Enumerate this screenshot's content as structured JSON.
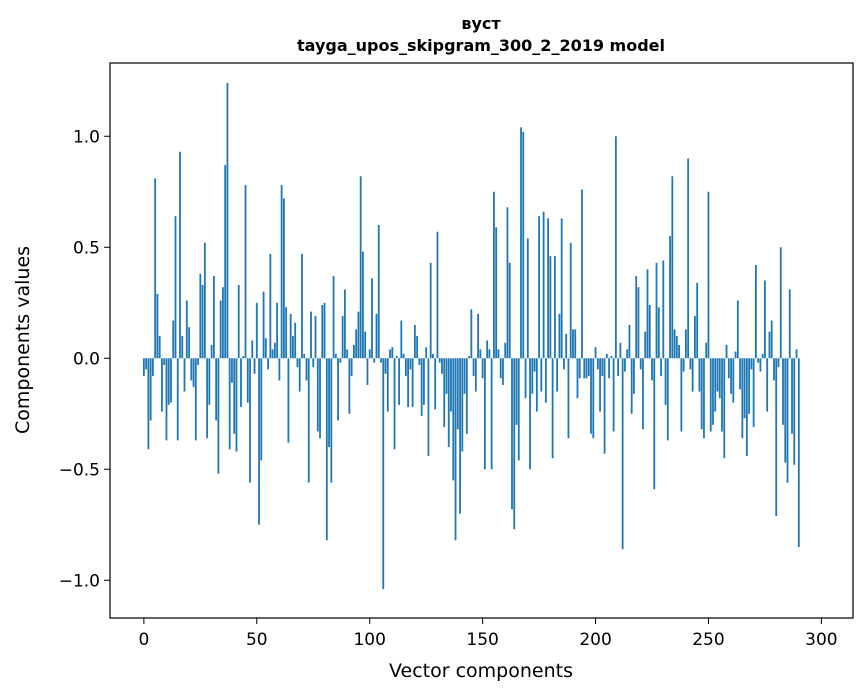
{
  "chart_data": {
    "type": "bar",
    "title": "вуст",
    "subtitle": "tayga_upos_skipgram_300_2_2019 model",
    "xlabel": "Vector components",
    "ylabel": "Components values",
    "xlim": [
      -15,
      314
    ],
    "ylim": [
      -1.17,
      1.33
    ],
    "xticks": [
      0,
      50,
      100,
      150,
      200,
      250,
      300
    ],
    "xtick_labels": [
      "0",
      "50",
      "100",
      "150",
      "200",
      "250",
      "300"
    ],
    "yticks": [
      -1.0,
      -0.5,
      0.0,
      0.5,
      1.0
    ],
    "ytick_labels": [
      "−1.0",
      "−0.5",
      "0.0",
      "0.5",
      "1.0"
    ],
    "color": "#1f77b4",
    "bar_width": 0.8,
    "values": [
      -0.08,
      -0.05,
      -0.41,
      -0.28,
      -0.08,
      0.81,
      0.29,
      0.1,
      -0.24,
      -0.03,
      -0.37,
      -0.21,
      -0.2,
      0.17,
      0.64,
      -0.37,
      0.93,
      0.1,
      -0.15,
      0.26,
      0.14,
      -0.1,
      -0.13,
      -0.37,
      -0.03,
      0.38,
      0.33,
      0.52,
      -0.36,
      -0.21,
      0.06,
      0.37,
      -0.28,
      -0.52,
      0.26,
      0.32,
      0.87,
      1.24,
      -0.41,
      -0.11,
      -0.34,
      -0.42,
      0.33,
      -0.22,
      0.01,
      0.78,
      -0.2,
      -0.56,
      0.08,
      -0.07,
      0.25,
      -0.75,
      -0.46,
      0.3,
      0.09,
      -0.05,
      0.47,
      0.04,
      0.07,
      0.25,
      -0.1,
      0.78,
      0.72,
      0.23,
      -0.38,
      0.2,
      0.1,
      0.16,
      -0.04,
      -0.15,
      0.47,
      0.02,
      -0.1,
      -0.56,
      0.21,
      -0.04,
      0.19,
      -0.33,
      -0.36,
      0.24,
      0.25,
      -0.82,
      -0.4,
      -0.56,
      0.37,
      0.02,
      -0.28,
      -0.02,
      0.19,
      0.31,
      0.04,
      -0.25,
      -0.08,
      0.06,
      0.13,
      0.21,
      0.82,
      0.48,
      0.12,
      -0.12,
      0.04,
      0.36,
      -0.02,
      0.2,
      0.6,
      -0.02,
      -1.04,
      -0.07,
      -0.24,
      0.04,
      0.05,
      -0.41,
      0.01,
      -0.21,
      0.17,
      0.02,
      -0.08,
      -0.22,
      -0.05,
      -0.22,
      0.15,
      0.1,
      -0.03,
      -0.26,
      -0.21,
      0.05,
      -0.44,
      0.43,
      0.02,
      -0.23,
      0.57,
      -0.02,
      -0.07,
      -0.31,
      -0.16,
      -0.4,
      -0.24,
      -0.55,
      -0.82,
      -0.32,
      -0.7,
      -0.42,
      -0.16,
      -0.34,
      0.01,
      0.22,
      -0.08,
      -0.15,
      0.2,
      0.04,
      -0.09,
      -0.5,
      0.08,
      0.04,
      -0.5,
      0.75,
      0.59,
      0.04,
      -0.09,
      -0.12,
      0.07,
      0.68,
      0.43,
      -0.68,
      -0.77,
      -0.3,
      -0.46,
      1.04,
      1.02,
      -0.18,
      0.54,
      -0.5,
      -0.16,
      -0.06,
      -0.24,
      0.64,
      -0.15,
      0.66,
      -0.2,
      0.63,
      0.46,
      -0.45,
      0.46,
      -0.15,
      0.2,
      0.63,
      -0.05,
      0.11,
      -0.36,
      0.52,
      0.13,
      0.13,
      -0.18,
      -0.09,
      0.76,
      -0.09,
      -0.09,
      -0.08,
      -0.34,
      -0.36,
      0.05,
      -0.05,
      -0.24,
      -0.08,
      -0.43,
      0.02,
      -0.09,
      0.01,
      -0.33,
      1.0,
      -0.08,
      0.07,
      -0.86,
      -0.06,
      0.04,
      0.15,
      -0.25,
      -0.16,
      0.37,
      0.32,
      -0.05,
      -0.32,
      0.12,
      0.4,
      0.24,
      -0.1,
      -0.59,
      0.43,
      0.23,
      -0.08,
      0.44,
      -0.21,
      -0.37,
      0.55,
      0.82,
      0.13,
      0.1,
      0.06,
      -0.33,
      -0.06,
      0.13,
      0.9,
      -0.05,
      -0.15,
      0.19,
      0.34,
      -0.15,
      -0.32,
      -0.36,
      0.07,
      0.75,
      -0.33,
      -0.3,
      -0.24,
      -0.15,
      -0.18,
      -0.33,
      -0.45,
      0.06,
      -0.09,
      -0.16,
      -0.2,
      0.03,
      0.26,
      -0.14,
      -0.36,
      -0.27,
      -0.44,
      -0.25,
      -0.05,
      -0.31,
      0.42,
      -0.02,
      -0.06,
      0.02,
      0.35,
      -0.24,
      0.12,
      0.17,
      -0.1,
      -0.71,
      -0.04,
      0.5,
      -0.3,
      -0.47,
      -0.56,
      0.31,
      -0.34,
      -0.48,
      0.04,
      -0.85
    ]
  }
}
